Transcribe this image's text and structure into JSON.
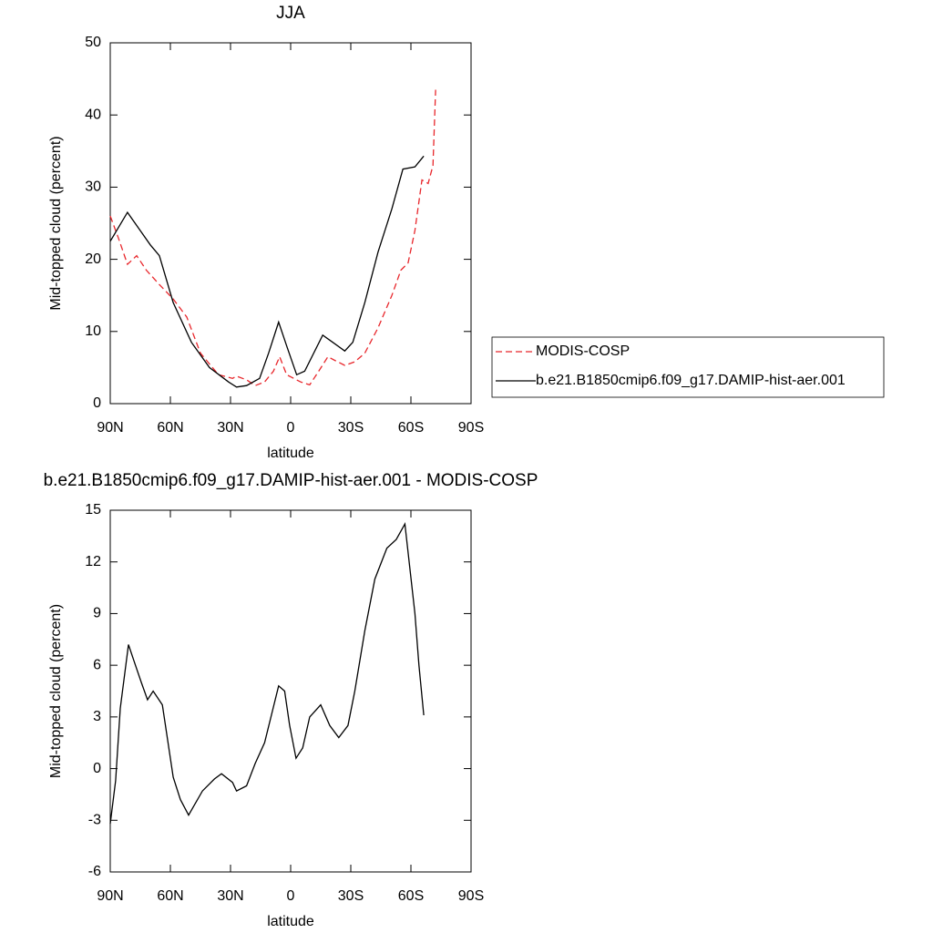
{
  "chart_data": [
    {
      "type": "line",
      "title": "JJA",
      "xlabel": "latitude",
      "ylabel": "Mid-topped cloud (percent)",
      "xlim": [
        90,
        -90
      ],
      "ylim": [
        0,
        50
      ],
      "xticks": [
        {
          "value": 90,
          "label": "90N"
        },
        {
          "value": 60,
          "label": "60N"
        },
        {
          "value": 30,
          "label": "30N"
        },
        0,
        {
          "value": -30,
          "label": "30S"
        },
        {
          "value": -60,
          "label": "60S"
        },
        {
          "value": -90,
          "label": "90S"
        }
      ],
      "yticks": [
        0,
        10,
        20,
        30,
        40,
        50
      ],
      "legend": "right",
      "series": [
        {
          "name": "MODIS-COSP",
          "color": "#e8262b",
          "dash": true,
          "x": [
            90,
            86,
            81.4,
            76.8,
            72,
            65.5,
            58.6,
            51.8,
            45,
            36,
            29,
            27,
            22,
            17.7,
            13,
            8.6,
            5.5,
            2,
            -5,
            -9.5,
            -14,
            -18.6,
            -22,
            -27,
            -32,
            -37,
            -43.6,
            -50.5,
            -55,
            -58.6,
            -62,
            -65.5,
            -68.6,
            -71,
            -72.3
          ],
          "values": [
            26,
            23,
            19.3,
            20.5,
            18.5,
            16.5,
            14.5,
            12,
            7,
            4,
            3.5,
            3.8,
            3.3,
            2.5,
            3,
            4.5,
            6.5,
            4,
            3,
            2.6,
            4.5,
            6.5,
            6,
            5.3,
            5.8,
            7,
            10.5,
            15,
            18.5,
            19.5,
            24,
            31,
            30.5,
            33,
            43.5
          ]
        },
        {
          "name": "b.e21.B1850cmip6.f09_g17.DAMIP-hist-aer.001",
          "color": "#000000",
          "dash": false,
          "x": [
            90,
            81.4,
            70,
            65.5,
            58.6,
            49.5,
            40.5,
            31,
            27,
            22,
            15.5,
            11,
            6,
            2,
            -3,
            -7,
            -16,
            -21,
            -27,
            -31,
            -37,
            -43.6,
            -50.5,
            -56,
            -62,
            -66.4
          ],
          "values": [
            22.5,
            26.5,
            22,
            20.5,
            14,
            8.5,
            5,
            3,
            2.3,
            2.5,
            3.5,
            7,
            11.3,
            8,
            4,
            4.5,
            9.5,
            8.5,
            7.3,
            8.5,
            14,
            21,
            27,
            32.5,
            32.8,
            34.3
          ]
        }
      ]
    },
    {
      "type": "line",
      "title": "b.e21.B1850cmip6.f09_g17.DAMIP-hist-aer.001 - MODIS-COSP",
      "xlabel": "latitude",
      "ylabel": "Mid-topped cloud (percent)",
      "xlim": [
        90,
        -90
      ],
      "ylim": [
        -6,
        15
      ],
      "xticks": [
        {
          "value": 90,
          "label": "90N"
        },
        {
          "value": 60,
          "label": "60N"
        },
        {
          "value": 30,
          "label": "30N"
        },
        0,
        {
          "value": -30,
          "label": "30S"
        },
        {
          "value": -60,
          "label": "60S"
        },
        {
          "value": -90,
          "label": "90S"
        }
      ],
      "yticks": [
        -6,
        -3,
        0,
        3,
        6,
        9,
        12,
        15
      ],
      "series": [
        {
          "color": "#000000",
          "dash": false,
          "x": [
            90,
            87.3,
            85,
            80.9,
            78,
            74.5,
            71.4,
            68.6,
            64,
            58.6,
            55,
            50.9,
            44,
            38,
            34.5,
            29,
            27,
            22,
            17.7,
            13,
            6,
            3,
            0.5,
            -2.7,
            -6,
            -9.5,
            -15,
            -19.5,
            -24,
            -28.6,
            -32,
            -37,
            -42,
            -48,
            -52.7,
            -57,
            -62,
            -64,
            -66.4
          ],
          "values": [
            -3.2,
            -0.7,
            3.5,
            7.2,
            6.2,
            5,
            4,
            4.5,
            3.7,
            -0.5,
            -1.8,
            -2.7,
            -1.3,
            -0.6,
            -0.3,
            -0.8,
            -1.3,
            -1,
            0.3,
            1.5,
            4.8,
            4.5,
            2.5,
            0.6,
            1.2,
            3,
            3.7,
            2.5,
            1.8,
            2.5,
            4.5,
            8,
            11,
            12.8,
            13.3,
            14.2,
            9,
            6,
            3.1
          ]
        }
      ]
    }
  ]
}
